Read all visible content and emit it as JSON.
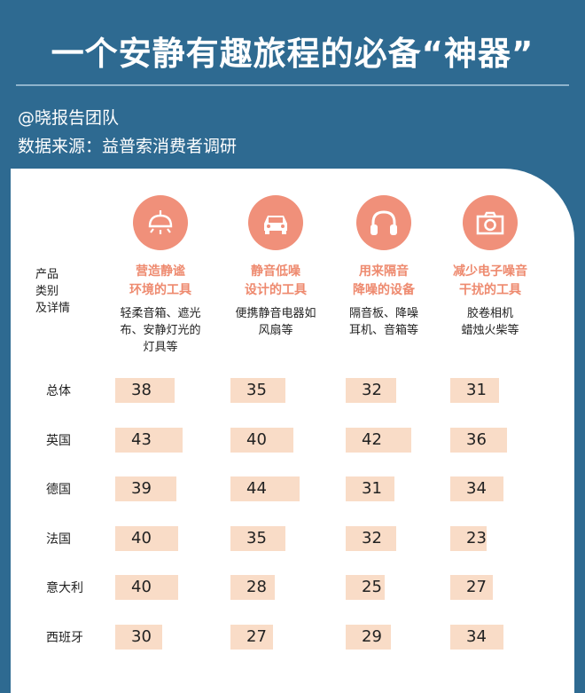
{
  "title": "一个安静有趣旅程的必备“神器”",
  "author": "@晓报告团队",
  "source": "数据来源：益普索消费者调研",
  "row_header": [
    "产品",
    "类别",
    "及详情"
  ],
  "colors": {
    "background": "#2e6a91",
    "accent": "#f0907a",
    "bar": "#f9dcc7",
    "category_text": "#ee8a6f"
  },
  "columns": [
    {
      "icon": "lamp-icon",
      "label": [
        "营造静谧",
        "环境的工具"
      ],
      "desc": [
        "轻柔音箱、遮光",
        "布、安静灯光的",
        "灯具等"
      ]
    },
    {
      "icon": "car-icon",
      "label": [
        "静音低噪",
        "设计的工具"
      ],
      "desc": [
        "便携静音电器如",
        "风扇等"
      ]
    },
    {
      "icon": "headphones-icon",
      "label": [
        "用来隔音",
        "降噪的设备"
      ],
      "desc": [
        "隔音板、降噪",
        "耳机、音箱等"
      ]
    },
    {
      "icon": "camera-icon",
      "label": [
        "减少电子噪音",
        "干扰的工具"
      ],
      "desc": [
        "胶卷相机",
        "蜡烛火柴等"
      ]
    }
  ],
  "chart_data": {
    "type": "table",
    "categories": [
      "营造静谧环境的工具",
      "静音低噪设计的工具",
      "用来隔音降噪的设备",
      "减少电子噪音干扰的工具"
    ],
    "rows": [
      "总体",
      "英国",
      "德国",
      "法国",
      "意大利",
      "西班牙"
    ],
    "series": [
      {
        "name": "总体",
        "values": [
          38,
          35,
          32,
          31
        ]
      },
      {
        "name": "英国",
        "values": [
          43,
          40,
          42,
          36
        ]
      },
      {
        "name": "德国",
        "values": [
          39,
          44,
          31,
          34
        ]
      },
      {
        "name": "法国",
        "values": [
          40,
          35,
          32,
          23
        ]
      },
      {
        "name": "意大利",
        "values": [
          40,
          28,
          25,
          27
        ]
      },
      {
        "name": "西班牙",
        "values": [
          30,
          27,
          29,
          34
        ]
      }
    ]
  }
}
